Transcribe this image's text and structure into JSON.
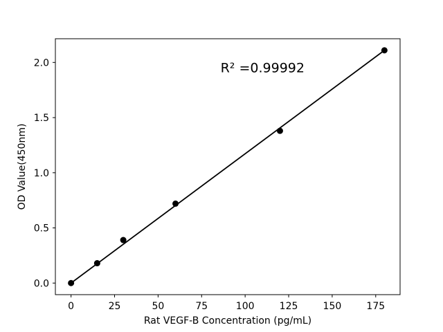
{
  "chart_data": {
    "type": "scatter",
    "title": "",
    "xlabel": "Rat VEGF-B Concentration (pg/mL)",
    "ylabel": "OD Value(450nm)",
    "annotation": {
      "text": "R² =0.99992",
      "x": 110,
      "y": 1.95
    },
    "points": {
      "x": [
        0,
        15,
        30,
        60,
        120,
        180
      ],
      "y": [
        0.0,
        0.18,
        0.39,
        0.72,
        1.38,
        2.11
      ]
    },
    "fit_line": {
      "x": [
        0,
        180
      ],
      "y": [
        0.0,
        2.11
      ]
    },
    "xticks": {
      "values": [
        0,
        25,
        50,
        75,
        100,
        125,
        150,
        175
      ],
      "labels": [
        "0",
        "25",
        "50",
        "75",
        "100",
        "125",
        "150",
        "175"
      ]
    },
    "yticks": {
      "values": [
        0.0,
        0.5,
        1.0,
        1.5,
        2.0
      ],
      "labels": [
        "0.0",
        "0.5",
        "1.0",
        "1.5",
        "2.0"
      ]
    },
    "xlim": [
      -9,
      189
    ],
    "ylim": [
      -0.105,
      2.215
    ],
    "grid": false,
    "legend": null,
    "colors": {
      "marker": "#000000",
      "line": "#000000",
      "text": "#000000",
      "background": "#ffffff"
    }
  }
}
